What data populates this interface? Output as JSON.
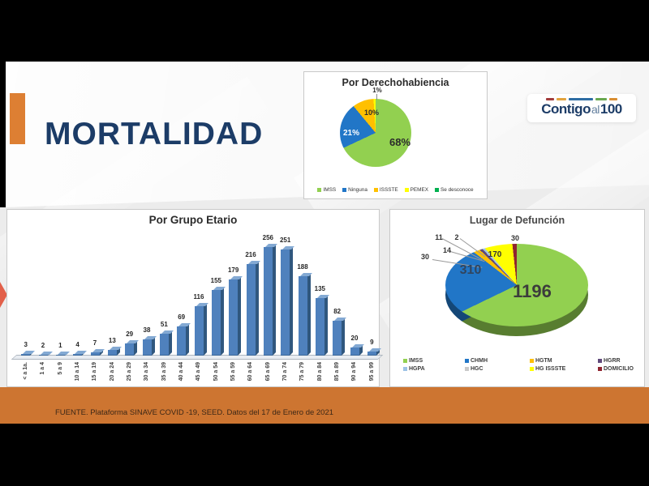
{
  "header": {
    "title": "MORTALIDAD"
  },
  "logo": {
    "text_bold": "Contigo",
    "text_light": "al",
    "text_num": "100",
    "dash_colors": [
      "#a23b3b",
      "#e2a33d",
      "#2e6da4",
      "#69a84f",
      "#d98e32"
    ]
  },
  "footer": {
    "source": "FUENTE. Plataforma SINAVE COVID -19, SEED. Datos del 17 de Enero de 2021"
  },
  "colors": {
    "header_navy": "#1c3c67",
    "accent_orange": "#dd7f33",
    "footer_orange": "#cd7531",
    "bar_blue": "#4f81bd"
  },
  "chart_data": [
    {
      "type": "pie",
      "title": "Por Derechohabiencia",
      "labels": [
        "IMSS",
        "Ninguna",
        "ISSSTE",
        "PEMEX",
        "Se desconoce"
      ],
      "values_pct": [
        68,
        21,
        10,
        1,
        0
      ],
      "colors": [
        "#92d050",
        "#2176c7",
        "#ffc000",
        "#ffff00",
        "#00b050"
      ],
      "data_labels": {
        "imss": "68%",
        "ninguna": "21%",
        "issste": "10%",
        "pemex": "1%"
      },
      "legend_position": "bottom"
    },
    {
      "type": "bar",
      "title": "Por Grupo Etario",
      "categories": [
        "< a 1a.",
        "1 a 4",
        "5 a 9",
        "10 a 14",
        "15 a 19",
        "20 a 24",
        "25 a 29",
        "30 a 34",
        "35 a 39",
        "40 a 44",
        "45 a 49",
        "50 a 54",
        "55 a 59",
        "60 a 64",
        "65 a 69",
        "70 a 74",
        "75 a 79",
        "80 a 84",
        "85 a 89",
        "90 a 94",
        "95 a 99"
      ],
      "values": [
        3,
        2,
        1,
        4,
        7,
        13,
        29,
        38,
        51,
        69,
        116,
        155,
        179,
        216,
        256,
        251,
        188,
        135,
        82,
        20,
        9
      ],
      "bar_color": "#4f81bd",
      "ylim": [
        0,
        260
      ],
      "grid": false,
      "data_labels": true,
      "style": "3d-column"
    },
    {
      "type": "pie",
      "subtype": "3d",
      "title": "Lugar de Defunción",
      "labels": [
        "IMSS",
        "CHMH",
        "HGTM",
        "HGRR",
        "HGPA",
        "HGC",
        "HG ISSSTE",
        "DOMICILIO"
      ],
      "values": [
        1196,
        310,
        30,
        14,
        11,
        2,
        170,
        30
      ],
      "colors": [
        "#92d050",
        "#2176c7",
        "#ffc000",
        "#604a7b",
        "#9dc3e6",
        "#c9c9c9",
        "#ffff00",
        "#8f2430"
      ],
      "legend_position": "bottom"
    }
  ]
}
